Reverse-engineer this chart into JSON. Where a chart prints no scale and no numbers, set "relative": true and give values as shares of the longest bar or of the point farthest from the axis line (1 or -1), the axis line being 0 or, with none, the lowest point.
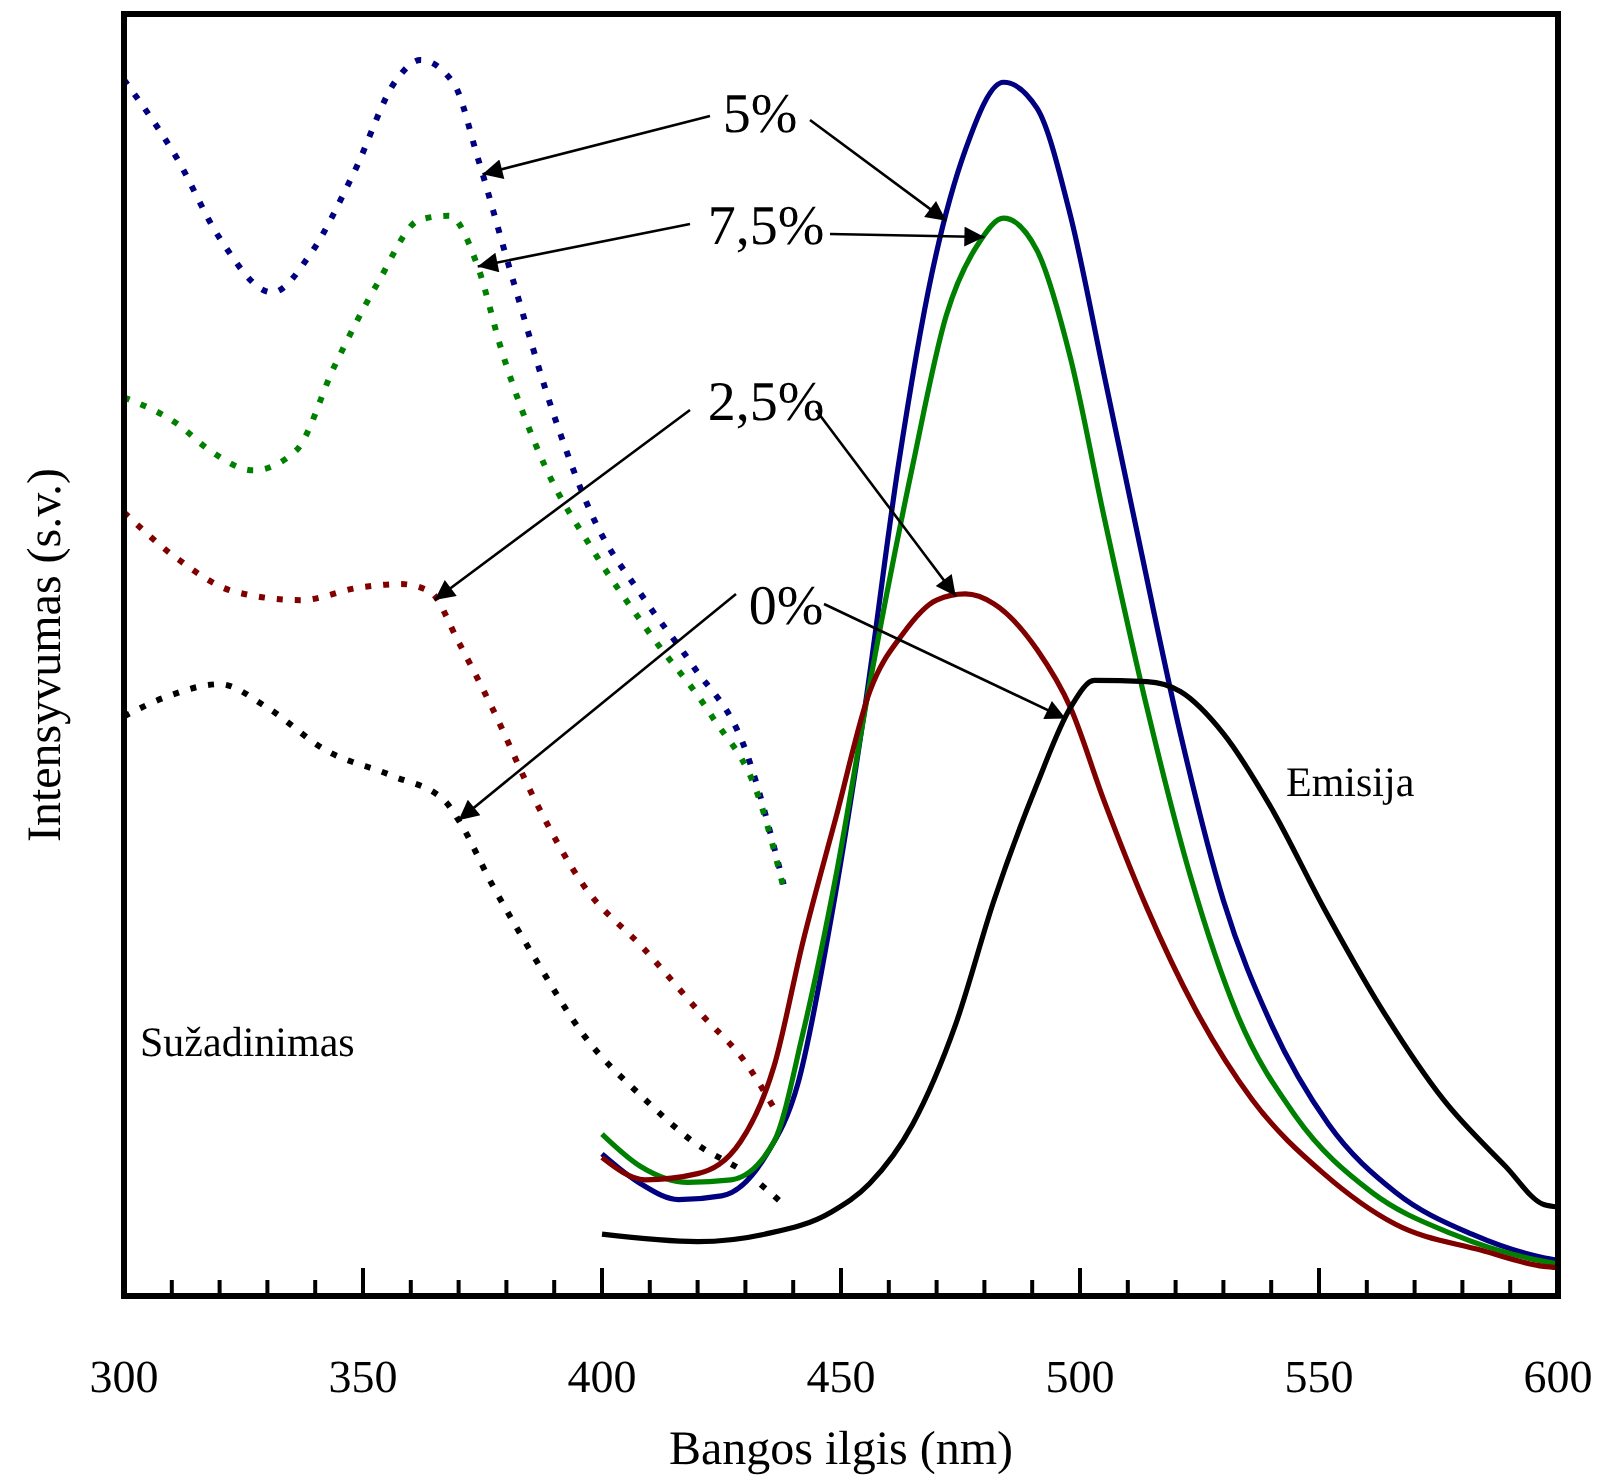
{
  "chart_data": {
    "type": "line",
    "relative": true,
    "xlabel": "Bangos ilgis (nm)",
    "ylabel": "Intensyvumas (s.v.)",
    "xlim": [
      300,
      600
    ],
    "xticks": [
      300,
      {
        "value": 310,
        "label": null
      },
      {
        "value": 320,
        "label": null
      },
      {
        "value": 330,
        "label": null
      },
      {
        "value": 340,
        "label": null
      },
      350,
      {
        "value": 360,
        "label": null
      },
      {
        "value": 370,
        "label": null
      },
      {
        "value": 380,
        "label": null
      },
      {
        "value": 390,
        "label": null
      },
      400,
      {
        "value": 410,
        "label": null
      },
      {
        "value": 420,
        "label": null
      },
      {
        "value": 430,
        "label": null
      },
      {
        "value": 440,
        "label": null
      },
      450,
      {
        "value": 460,
        "label": null
      },
      {
        "value": 470,
        "label": null
      },
      {
        "value": 480,
        "label": null
      },
      {
        "value": 490,
        "label": null
      },
      500,
      {
        "value": 510,
        "label": null
      },
      {
        "value": 520,
        "label": null
      },
      {
        "value": 530,
        "label": null
      },
      {
        "value": 540,
        "label": null
      },
      550,
      {
        "value": 560,
        "label": null
      },
      {
        "value": 570,
        "label": null
      },
      {
        "value": 580,
        "label": null
      },
      {
        "value": 590,
        "label": null
      },
      600
    ],
    "tick_labels": "x",
    "grid": false,
    "marker": "none",
    "annotations": [
      "5%",
      "7,5%",
      "2,5%",
      "0%",
      "Sužadinimas",
      "Emisija"
    ],
    "series": [
      {
        "color": "#000080",
        "line_style": "dotted",
        "x": [
          300,
          311,
          320,
          331,
          339,
          348,
          357,
          362,
          369,
          374,
          381,
          390,
          398,
          409,
          419,
          430,
          438
        ],
        "values": [
          0.984,
          0.921,
          0.856,
          0.812,
          0.843,
          0.908,
          0.984,
          1.0,
          0.981,
          0.921,
          0.827,
          0.712,
          0.631,
          0.563,
          0.51,
          0.442,
          0.333
        ]
      },
      {
        "color": "#008000",
        "line_style": "dotted",
        "x": [
          300,
          311,
          318,
          327,
          336,
          344,
          353,
          362,
          368,
          374,
          379,
          388,
          398,
          410,
          423,
          433,
          438
        ],
        "values": [
          0.727,
          0.706,
          0.684,
          0.668,
          0.684,
          0.752,
          0.819,
          0.871,
          0.874,
          0.833,
          0.765,
          0.672,
          0.604,
          0.536,
          0.469,
          0.401,
          0.33
        ]
      },
      {
        "color": "#800000",
        "line_style": "dotted",
        "x": [
          300,
          311,
          323,
          337,
          349,
          358,
          364,
          370,
          377,
          386,
          396,
          409,
          421,
          430,
          436
        ],
        "values": [
          0.634,
          0.597,
          0.57,
          0.563,
          0.573,
          0.576,
          0.57,
          0.529,
          0.476,
          0.401,
          0.333,
          0.28,
          0.227,
          0.189,
          0.152
        ]
      },
      {
        "color": "#000000",
        "line_style": "dotted",
        "x": [
          300,
          309,
          320,
          330,
          342,
          356,
          367,
          370,
          377,
          386,
          396,
          409,
          419,
          431,
          438
        ],
        "values": [
          0.469,
          0.485,
          0.495,
          0.476,
          0.442,
          0.421,
          0.401,
          0.385,
          0.333,
          0.273,
          0.212,
          0.159,
          0.125,
          0.097,
          0.074
        ]
      },
      {
        "color": "#000080",
        "line_style": "solid",
        "x": [
          400,
          408,
          416,
          425,
          434,
          441,
          448,
          455,
          462,
          469,
          476,
          484,
          491,
          498,
          505,
          512,
          521,
          530,
          540,
          552,
          566,
          582,
          597,
          600
        ],
        "values": [
          0.115,
          0.091,
          0.078,
          0.081,
          0.112,
          0.172,
          0.307,
          0.476,
          0.672,
          0.827,
          0.927,
          0.982,
          0.961,
          0.874,
          0.746,
          0.617,
          0.455,
          0.32,
          0.22,
          0.139,
          0.084,
          0.05,
          0.031,
          0.029
        ]
      },
      {
        "color": "#008000",
        "line_style": "solid",
        "x": [
          400,
          408,
          418,
          427,
          436,
          442,
          449,
          456,
          465,
          472,
          479,
          484,
          491,
          498,
          505,
          514,
          523,
          533,
          545,
          561,
          578,
          597,
          600
        ],
        "values": [
          0.131,
          0.105,
          0.092,
          0.094,
          0.125,
          0.212,
          0.341,
          0.495,
          0.672,
          0.793,
          0.853,
          0.872,
          0.846,
          0.759,
          0.631,
          0.476,
          0.341,
          0.227,
          0.146,
          0.084,
          0.05,
          0.028,
          0.026
        ]
      },
      {
        "color": "#800000",
        "line_style": "solid",
        "x": [
          400,
          409,
          420,
          429,
          436,
          442,
          449,
          456,
          463,
          470,
          476,
          482,
          491,
          498,
          505,
          514,
          524,
          536,
          551,
          566,
          584,
          597,
          600
        ],
        "values": [
          0.112,
          0.094,
          0.099,
          0.125,
          0.186,
          0.286,
          0.388,
          0.489,
          0.536,
          0.563,
          0.568,
          0.56,
          0.523,
          0.476,
          0.401,
          0.314,
          0.233,
          0.159,
          0.099,
          0.058,
          0.037,
          0.024,
          0.023
        ]
      },
      {
        "color": "#000000",
        "line_style": "solid",
        "x": [
          400,
          420,
          434,
          448,
          456,
          465,
          474,
          482,
          491,
          498,
          503,
          514,
          521,
          530,
          540,
          551,
          563,
          576,
          589,
          597,
          600
        ],
        "values": [
          0.05,
          0.044,
          0.05,
          0.068,
          0.091,
          0.139,
          0.22,
          0.32,
          0.414,
          0.476,
          0.498,
          0.497,
          0.489,
          0.455,
          0.395,
          0.314,
          0.233,
          0.159,
          0.105,
          0.074,
          0.072
        ]
      }
    ]
  }
}
